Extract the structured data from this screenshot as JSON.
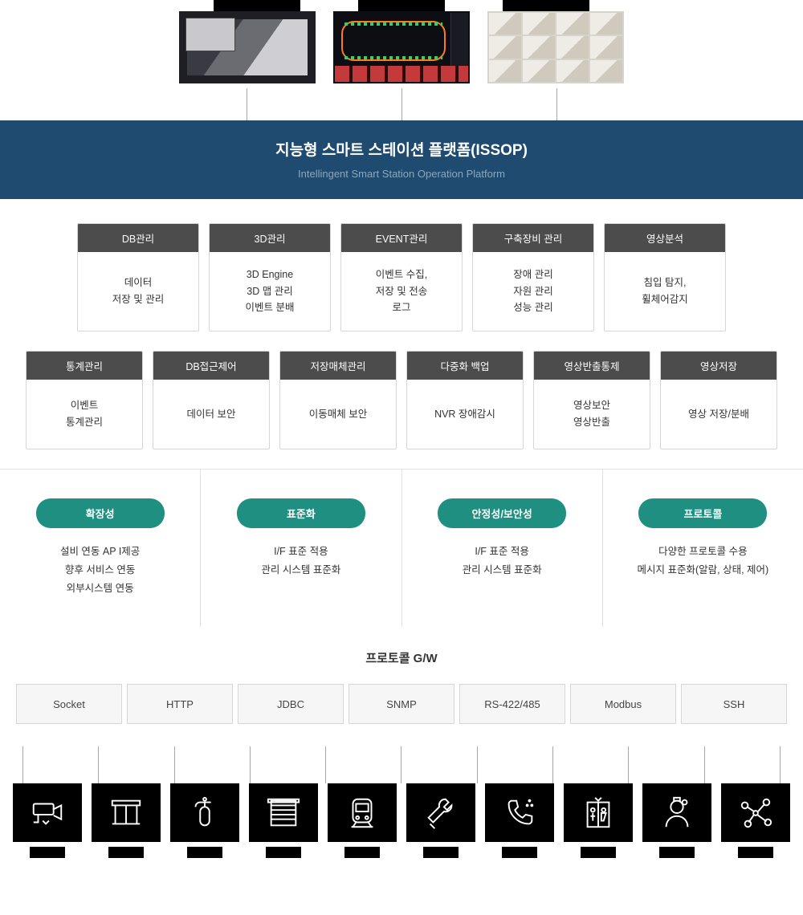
{
  "colors": {
    "banner_bg": "#1f4b70",
    "banner_sub": "#89a8bf",
    "card_header_bg": "#4c4c4c",
    "pill_bg": "#1e8f80",
    "border": "#d6d6d6",
    "proto_bg": "#f6f6f6",
    "tile_bg": "#000000",
    "connector": "#a6a6a6"
  },
  "top_screens": [
    {
      "kind": "3d-view"
    },
    {
      "kind": "track-chain"
    },
    {
      "kind": "cctv-grid"
    }
  ],
  "banner": {
    "title": "지능형 스마트 스테이션 플랫폼(ISSOP)",
    "subtitle": "Intellingent Smart Station Operation Platform"
  },
  "modules_row1": [
    {
      "title": "DB관리",
      "body": "데이터\n저장 및 관리"
    },
    {
      "title": "3D관리",
      "body": "3D Engine\n3D 맵 관리\n이벤트 분배"
    },
    {
      "title": "EVENT관리",
      "body": "이벤트 수집,\n저장 및 전송\n로그"
    },
    {
      "title": "구축장비 관리",
      "body": "장애 관리\n자원 관리\n성능 관리"
    },
    {
      "title": "영상분석",
      "body": "침입 탐지,\n휠체어감지"
    }
  ],
  "modules_row2": [
    {
      "title": "통계관리",
      "body": "이벤트\n통계관리"
    },
    {
      "title": "DB접근제어",
      "body": "데이터 보안"
    },
    {
      "title": "저장매체관리",
      "body": "이동매체 보안"
    },
    {
      "title": "다중화 백업",
      "body": "NVR 장애감시"
    },
    {
      "title": "영상반출통제",
      "body": "영상보안\n영상반출"
    },
    {
      "title": "영상저장",
      "body": "영상 저장/분배"
    }
  ],
  "pillars": [
    {
      "label": "확장성",
      "items": [
        "설비 연동 AP I제공",
        "향후 서비스 연동",
        "외부시스템 연동"
      ]
    },
    {
      "label": "표준화",
      "items": [
        "I/F 표준 적용",
        "관리 시스템 표준화"
      ]
    },
    {
      "label": "안정성/보안성",
      "items": [
        "I/F 표준 적용",
        "관리 시스템 표준화"
      ]
    },
    {
      "label": "프로토콜",
      "items": [
        "다양한 프로토콜 수용",
        "메시지 표준화(알람, 상태, 제어)"
      ]
    }
  ],
  "gateway": {
    "title": "프로토콜 G/W",
    "protocols": [
      "Socket",
      "HTTP",
      "JDBC",
      "SNMP",
      "RS-422/485",
      "Modbus",
      "SSH"
    ]
  },
  "bottom_icons": [
    "cctv-camera",
    "psd-gate",
    "fire-extinguisher",
    "shutter",
    "train",
    "tools",
    "call",
    "elevator",
    "staff",
    "sensor-network"
  ]
}
